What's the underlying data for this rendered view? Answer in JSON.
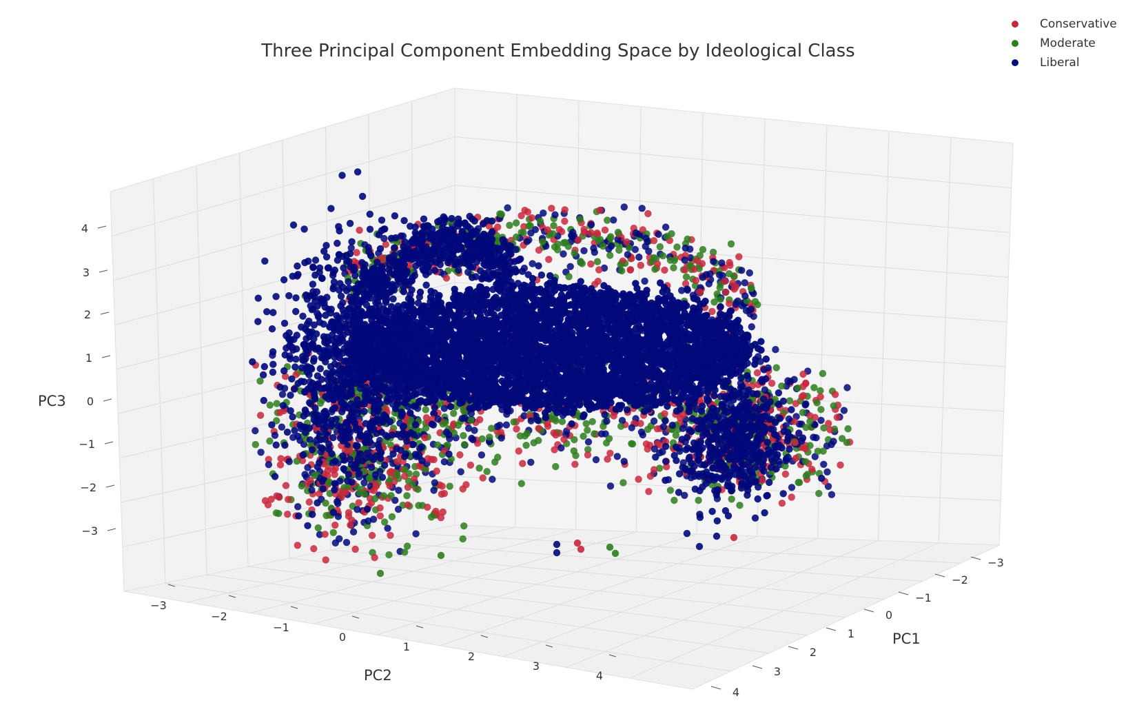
{
  "chart_data": {
    "type": "scatter",
    "projection": "3d",
    "title": "Three Principal Component Embedding Space by Ideological Class",
    "xlabel": "PC1",
    "ylabel": "PC2",
    "zlabel": "PC3",
    "xlim": [
      -3,
      4
    ],
    "ylim": [
      -3,
      4
    ],
    "zlim": [
      -3,
      4
    ],
    "x_ticks": [
      "−3",
      "−2",
      "−1",
      "0",
      "1",
      "2",
      "3",
      "4"
    ],
    "y_ticks": [
      "−3",
      "−2",
      "−1",
      "0",
      "1",
      "2",
      "3",
      "4"
    ],
    "z_ticks": [
      "−3",
      "−2",
      "−1",
      "0",
      "1",
      "2",
      "3",
      "4"
    ],
    "grid": true,
    "legend_position": "top-right",
    "series": [
      {
        "name": "Conservative",
        "color": "#c8283c",
        "points_estimated": 1200
      },
      {
        "name": "Moderate",
        "color": "#2e7d1e",
        "points_estimated": 1200
      },
      {
        "name": "Liberal",
        "color": "#00087a",
        "points_estimated": 6000
      }
    ]
  }
}
